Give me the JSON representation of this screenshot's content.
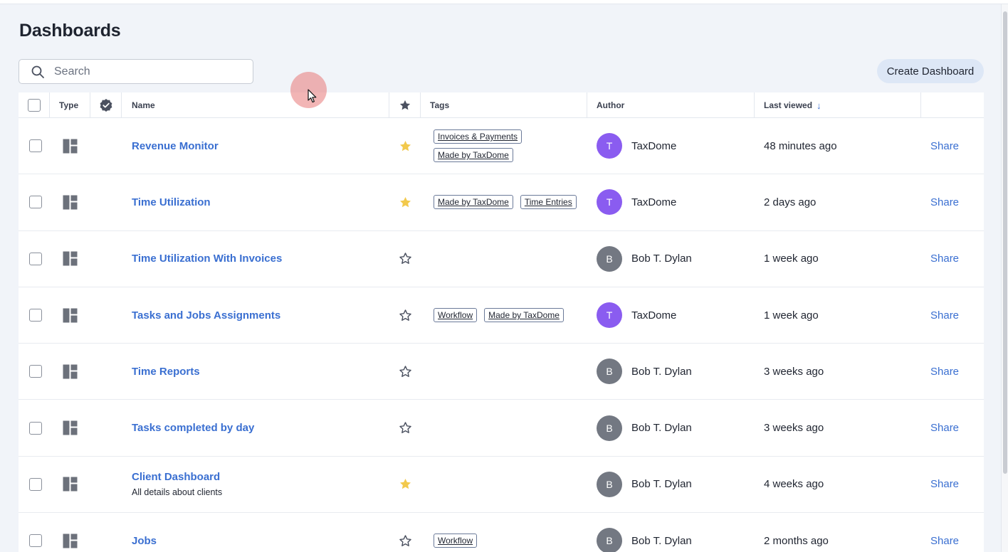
{
  "page": {
    "title": "Dashboards"
  },
  "search": {
    "placeholder": "Search",
    "value": ""
  },
  "toolbar": {
    "create_label": "Create Dashboard"
  },
  "colors": {
    "accent": "#3a6fd1",
    "star_filled": "#f2c94c",
    "avatar_taxdome": "#8a5cf0",
    "avatar_bob": "#737882"
  },
  "table": {
    "headers": {
      "type": "Type",
      "name": "Name",
      "tags": "Tags",
      "author": "Author",
      "last_viewed": "Last viewed"
    },
    "sort_indicator": "↓",
    "rows": [
      {
        "name": "Revenue Monitor",
        "description": "",
        "favorite": true,
        "tags": [
          "Invoices & Payments",
          "Made by TaxDome"
        ],
        "author_initial": "T",
        "author": "TaxDome",
        "avatar_color": "#8a5cf0",
        "last_viewed": "48 minutes ago",
        "share": "Share"
      },
      {
        "name": "Time Utilization",
        "description": "",
        "favorite": true,
        "tags": [
          "Made by TaxDome",
          "Time Entries"
        ],
        "author_initial": "T",
        "author": "TaxDome",
        "avatar_color": "#8a5cf0",
        "last_viewed": "2 days ago",
        "share": "Share"
      },
      {
        "name": "Time Utilization With Invoices",
        "description": "",
        "favorite": false,
        "tags": [],
        "author_initial": "B",
        "author": "Bob T. Dylan",
        "avatar_color": "#737882",
        "last_viewed": "1 week ago",
        "share": "Share"
      },
      {
        "name": "Tasks and Jobs Assignments",
        "description": "",
        "favorite": false,
        "tags": [
          "Workflow",
          "Made by TaxDome"
        ],
        "author_initial": "T",
        "author": "TaxDome",
        "avatar_color": "#8a5cf0",
        "last_viewed": "1 week ago",
        "share": "Share"
      },
      {
        "name": "Time Reports",
        "description": "",
        "favorite": false,
        "tags": [],
        "author_initial": "B",
        "author": "Bob T. Dylan",
        "avatar_color": "#737882",
        "last_viewed": "3 weeks ago",
        "share": "Share"
      },
      {
        "name": "Tasks completed by day",
        "description": "",
        "favorite": false,
        "tags": [],
        "author_initial": "B",
        "author": "Bob T. Dylan",
        "avatar_color": "#737882",
        "last_viewed": "3 weeks ago",
        "share": "Share"
      },
      {
        "name": "Client Dashboard",
        "description": "All details about clients",
        "favorite": true,
        "tags": [],
        "author_initial": "B",
        "author": "Bob T. Dylan",
        "avatar_color": "#737882",
        "last_viewed": "4 weeks ago",
        "share": "Share"
      },
      {
        "name": "Jobs",
        "description": "",
        "favorite": false,
        "tags": [
          "Workflow"
        ],
        "author_initial": "B",
        "author": "Bob T. Dylan",
        "avatar_color": "#737882",
        "last_viewed": "2 months ago",
        "share": "Share"
      }
    ]
  }
}
